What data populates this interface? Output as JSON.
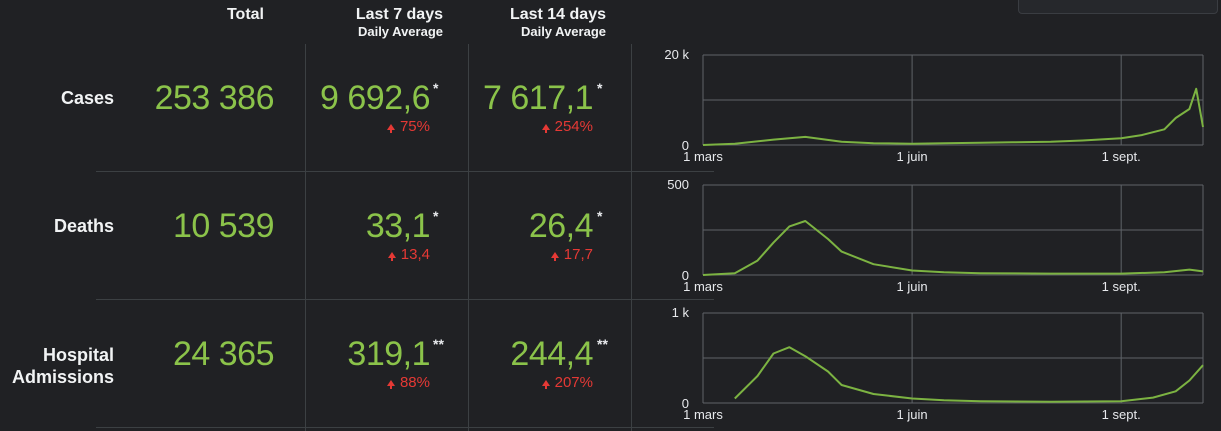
{
  "headers": {
    "total": "Total",
    "last7": {
      "line1": "Last 7 days",
      "line2": "Daily Average"
    },
    "last14": {
      "line1": "Last 14 days",
      "line2": "Daily Average"
    }
  },
  "rows": [
    {
      "label_lines": [
        "Cases"
      ],
      "total": "253 386",
      "last7": "9 692,6",
      "last7_mark": "*",
      "last7_delta": "75%",
      "last14": "7 617,1",
      "last14_mark": "*",
      "last14_delta": "254%"
    },
    {
      "label_lines": [
        "Deaths"
      ],
      "total": "10 539",
      "last7": "33,1",
      "last7_mark": "*",
      "last7_delta": "13,4",
      "last14": "26,4",
      "last14_mark": "*",
      "last14_delta": "17,7"
    },
    {
      "label_lines": [
        "Hospital",
        "Admissions"
      ],
      "total": "24 365",
      "last7": "319,1",
      "last7_mark": "**",
      "last7_delta": "88%",
      "last14": "244,4",
      "last14_mark": "**",
      "last14_delta": "207%"
    }
  ],
  "colors": {
    "background": "#202124",
    "value_green": "#8bc34a",
    "delta_red": "#e53935",
    "line_green": "#7cb342",
    "grid": "#5f6368"
  },
  "chart_data": [
    {
      "type": "line",
      "series_of": "Cases",
      "x_ticks": [
        "1 mars",
        "1 juin",
        "1 sept."
      ],
      "y_ticks": [
        "0",
        "20 k"
      ],
      "ylim": [
        0,
        20000
      ],
      "grid": true,
      "x": [
        "1 mars",
        "15 mars",
        "1 avr.",
        "15 avr.",
        "1 mai",
        "15 mai",
        "1 juin",
        "15 juin",
        "1 juil.",
        "15 juil.",
        "1 août",
        "15 août",
        "1 sept.",
        "10 sept.",
        "20 sept.",
        "25 sept.",
        "1 oct.",
        "4 oct.",
        "7 oct."
      ],
      "values": [
        0,
        300,
        1200,
        1800,
        700,
        400,
        300,
        400,
        500,
        600,
        700,
        1000,
        1500,
        2200,
        3500,
        6000,
        8000,
        12500,
        4000
      ]
    },
    {
      "type": "line",
      "series_of": "Deaths",
      "x_ticks": [
        "1 mars",
        "1 juin",
        "1 sept."
      ],
      "y_ticks": [
        "0",
        "500"
      ],
      "ylim": [
        0,
        500
      ],
      "grid": true,
      "x": [
        "1 mars",
        "15 mars",
        "25 mars",
        "1 avr.",
        "8 avr.",
        "15 avr.",
        "25 avr.",
        "1 mai",
        "15 mai",
        "1 juin",
        "15 juin",
        "1 juil.",
        "1 août",
        "1 sept.",
        "20 sept.",
        "1 oct.",
        "7 oct."
      ],
      "values": [
        0,
        10,
        80,
        180,
        270,
        300,
        200,
        130,
        60,
        25,
        15,
        10,
        8,
        8,
        15,
        30,
        20
      ]
    },
    {
      "type": "line",
      "series_of": "Hospital Admissions",
      "x_ticks": [
        "1 mars",
        "1 juin",
        "1 sept."
      ],
      "y_ticks": [
        "0",
        "1 k"
      ],
      "ylim": [
        0,
        1000
      ],
      "grid": true,
      "x": [
        "15 mars",
        "25 mars",
        "1 avr.",
        "8 avr.",
        "15 avr.",
        "25 avr.",
        "1 mai",
        "15 mai",
        "1 juin",
        "15 juin",
        "1 juil.",
        "1 août",
        "1 sept.",
        "15 sept.",
        "25 sept.",
        "1 oct.",
        "7 oct."
      ],
      "values": [
        50,
        300,
        550,
        620,
        520,
        350,
        200,
        100,
        50,
        30,
        20,
        15,
        20,
        60,
        130,
        250,
        420
      ]
    }
  ]
}
